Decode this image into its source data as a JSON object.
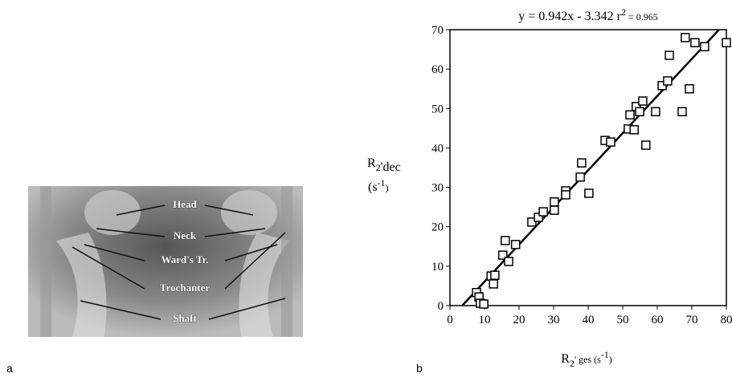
{
  "panel_a": {
    "label": "a",
    "annotations": [
      "Head",
      "Neck",
      "Ward's Tr.",
      "Trochanter",
      "Shaft"
    ]
  },
  "chart_data": {
    "type": "scatter",
    "panel_label": "b",
    "title_parts": [
      "y = 0.942x - 3.342   r",
      "2",
      " = 0.965"
    ],
    "fit": {
      "slope": 0.942,
      "intercept": -3.342
    },
    "y_label_parts": [
      "R",
      "2",
      "'dec",
      "(s",
      "-1",
      ")"
    ],
    "x_label_parts": [
      "R",
      "2",
      "' ges (s",
      "-1",
      ")"
    ],
    "x": [
      7.7,
      8.4,
      8.8,
      9.8,
      11.9,
      13,
      12.6,
      15.3,
      16,
      17,
      19,
      23.7,
      25.6,
      27,
      30.2,
      30.2,
      33.5,
      33.5,
      37.7,
      38.1,
      40.2,
      44.9,
      46.5,
      51.6,
      53.3,
      52.1,
      53.9,
      54.9,
      55.8,
      56.7,
      59.5,
      61.4,
      63,
      63.5,
      67.2,
      68.1,
      69.3,
      70.9,
      73.7,
      80
    ],
    "values": [
      3.3,
      2.2,
      0.6,
      0.4,
      7.5,
      7.7,
      5.5,
      12.8,
      16.5,
      11.2,
      15.5,
      21.2,
      22.4,
      23.8,
      24.2,
      26.3,
      29.1,
      28.1,
      32.6,
      36.2,
      28.5,
      41.9,
      41.5,
      44.8,
      44.6,
      48.4,
      50.5,
      49.2,
      51.9,
      40.7,
      49.2,
      55.8,
      57,
      63.5,
      49.2,
      68,
      55,
      66.7,
      65.7,
      66.7
    ],
    "xlim": [
      0,
      80
    ],
    "ylim": [
      0,
      70
    ],
    "xticks": [
      0,
      10,
      20,
      30,
      40,
      50,
      60,
      70,
      80
    ],
    "yticks": [
      0,
      10,
      20,
      30,
      40,
      50,
      60,
      70
    ],
    "color": "#000000"
  }
}
